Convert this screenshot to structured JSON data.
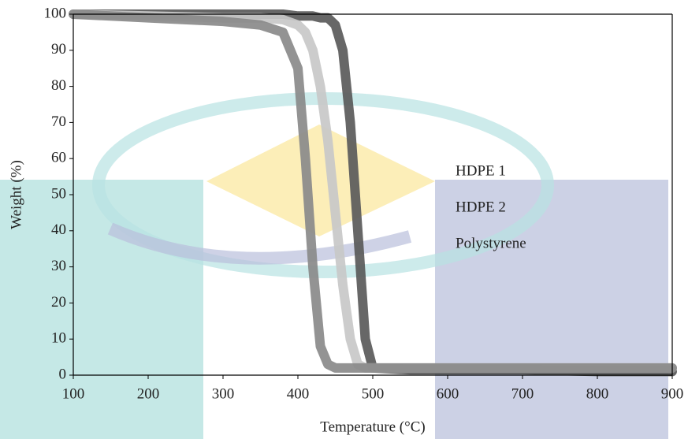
{
  "chart_data": {
    "type": "line",
    "x_label": "Temperature (°C)",
    "y_label": "Weight (%)",
    "x": [
      100,
      200,
      300,
      350,
      380,
      400,
      410,
      420,
      430,
      440,
      450,
      460,
      470,
      480,
      490,
      500,
      550,
      600,
      700,
      800,
      900
    ],
    "series": [
      {
        "name": "HDPE 1",
        "color": "#5a5a5a",
        "values": [
          100,
          100,
          100,
          100,
          100,
          99.5,
          99.5,
          99.5,
          99,
          99,
          97,
          90,
          70,
          40,
          10,
          2,
          1.5,
          1.5,
          1.5,
          1,
          1
        ]
      },
      {
        "name": "HDPE 2",
        "color": "#c8c8c8",
        "values": [
          100,
          99.5,
          99,
          99,
          98.5,
          97,
          95,
          90,
          80,
          65,
          45,
          25,
          10,
          3,
          2,
          2,
          2,
          2,
          2,
          2,
          2
        ]
      },
      {
        "name": "Polystyrene",
        "color": "#8a8a8a",
        "values": [
          100,
          99,
          98,
          97,
          95,
          85,
          60,
          30,
          8,
          3,
          2,
          2,
          2,
          2,
          2,
          2,
          2,
          2,
          2,
          2,
          2
        ]
      }
    ],
    "xlim": [
      100,
      900
    ],
    "ylim": [
      0,
      100
    ],
    "xticks": [
      100,
      200,
      300,
      400,
      500,
      600,
      700,
      800,
      900
    ],
    "yticks": [
      0,
      10,
      20,
      30,
      40,
      50,
      60,
      70,
      80,
      90,
      100
    ]
  }
}
